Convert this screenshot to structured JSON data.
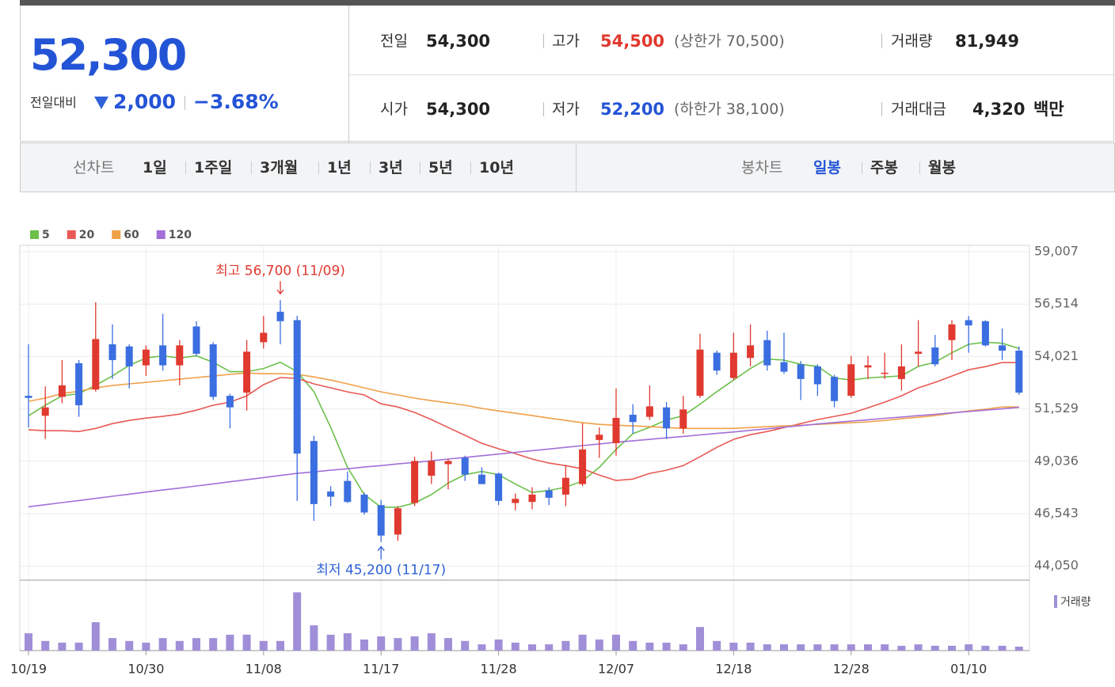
{
  "header": {
    "price": "52,300",
    "change_label": "전일대비",
    "change": "2,000",
    "change_rate": "−3.68%",
    "stats": [
      {
        "label": "전일",
        "value": "54,300"
      },
      {
        "label": "고가",
        "value": "54,500",
        "note": "(상한가 70,500)"
      },
      {
        "label": "거래량",
        "value": "81,949"
      },
      {
        "label": "시가",
        "value": "54,300"
      },
      {
        "label": "저가",
        "value": "52,200",
        "note": "(하한가 38,100)"
      },
      {
        "label": "거래대금",
        "value": "4,320",
        "unit": "백만"
      }
    ]
  },
  "tabs": {
    "line_chart": {
      "label": "선차트",
      "items": [
        "1일",
        "1주일",
        "3개월",
        "1년",
        "3년",
        "5년",
        "10년"
      ]
    },
    "candle_chart": {
      "label": "봉차트",
      "items": [
        "일봉",
        "주봉",
        "월봉"
      ],
      "active": 0
    }
  },
  "chart_data": {
    "type": "candlestick",
    "categories": [
      "10/19",
      null,
      null,
      null,
      null,
      null,
      null,
      "10/30",
      null,
      null,
      null,
      null,
      null,
      null,
      "11/08",
      null,
      null,
      null,
      null,
      null,
      null,
      "11/17",
      null,
      null,
      null,
      null,
      null,
      null,
      "11/28",
      null,
      null,
      null,
      null,
      null,
      null,
      "12/07",
      null,
      null,
      null,
      null,
      null,
      null,
      "12/18",
      null,
      null,
      null,
      null,
      null,
      null,
      "12/28",
      null,
      null,
      null,
      null,
      null,
      null,
      "01/10",
      null,
      null,
      null
    ],
    "open": [
      52150,
      51200,
      52100,
      53700,
      52450,
      54600,
      54500,
      53600,
      54550,
      53600,
      55450,
      54600,
      52150,
      52300,
      54700,
      56150,
      55750,
      50000,
      47600,
      48100,
      47450,
      46950,
      45550,
      47050,
      48350,
      48900,
      49200,
      48400,
      48450,
      47050,
      47100,
      47650,
      47450,
      47950,
      50050,
      49900,
      51250,
      51150,
      51600,
      50600,
      52150,
      54200,
      53000,
      53950,
      54800,
      53750,
      53650,
      53550,
      53050,
      52150,
      53500,
      53200,
      52950,
      54150,
      54450,
      54800,
      55750,
      55700,
      54550,
      54300
    ],
    "high": [
      54600,
      52600,
      53850,
      53850,
      56600,
      55550,
      54600,
      54550,
      56050,
      54800,
      55700,
      54700,
      52250,
      54800,
      55950,
      56700,
      55950,
      50250,
      47850,
      48550,
      47550,
      47200,
      46900,
      49250,
      49500,
      49150,
      49300,
      48750,
      48500,
      47500,
      47800,
      47800,
      48850,
      50850,
      50650,
      52500,
      51750,
      52650,
      51850,
      52150,
      55100,
      54300,
      55150,
      55550,
      55250,
      55150,
      53800,
      53650,
      53150,
      54050,
      54050,
      54200,
      54600,
      55750,
      55050,
      55750,
      55950,
      55750,
      55350,
      54500
    ],
    "low": [
      50650,
      50100,
      51800,
      51150,
      52350,
      52950,
      52500,
      53100,
      53350,
      52650,
      54050,
      51950,
      50600,
      51450,
      54400,
      54600,
      47150,
      46200,
      46900,
      47050,
      46500,
      45200,
      45250,
      46900,
      47950,
      47700,
      48100,
      47950,
      46950,
      46700,
      46750,
      46950,
      46900,
      47850,
      49200,
      49300,
      50350,
      51000,
      50100,
      50350,
      52050,
      53150,
      52900,
      53550,
      53350,
      53200,
      51950,
      52150,
      51600,
      52050,
      52950,
      52950,
      52400,
      53550,
      53550,
      53850,
      54200,
      54500,
      53850,
      52200
    ],
    "close": [
      52050,
      51600,
      52650,
      51700,
      54850,
      53850,
      53550,
      54350,
      53600,
      54550,
      54150,
      52100,
      51600,
      54250,
      55150,
      55700,
      49400,
      47000,
      47350,
      47100,
      46600,
      45500,
      46800,
      49050,
      49050,
      49050,
      48400,
      47950,
      47150,
      47250,
      47450,
      47300,
      48250,
      49600,
      50300,
      51100,
      50900,
      51650,
      50600,
      51500,
      54350,
      53350,
      54200,
      54550,
      53600,
      53300,
      52950,
      52700,
      51900,
      53650,
      53600,
      53250,
      53550,
      54250,
      53650,
      55550,
      55500,
      54550,
      54300,
      52300
    ],
    "up_color": "#e0392f",
    "down_color": "#3b6ee0",
    "series": [
      {
        "name": "5",
        "color": "#6cc04a",
        "values": [
          51200,
          51700,
          52150,
          52250,
          52650,
          53100,
          53600,
          53950,
          54050,
          53950,
          54050,
          53750,
          53300,
          53300,
          53450,
          53750,
          53300,
          52350,
          50650,
          48750,
          47450,
          46850,
          46850,
          47050,
          47450,
          48000,
          48400,
          48550,
          48400,
          47950,
          47550,
          47650,
          47800,
          48100,
          48750,
          49600,
          50350,
          50650,
          51000,
          51200,
          51750,
          52350,
          52900,
          53450,
          53900,
          53850,
          53650,
          53550,
          53000,
          52900,
          53000,
          53050,
          53100,
          53550,
          53750,
          54200,
          54600,
          54700,
          54650,
          54400
        ]
      },
      {
        "name": "20",
        "color": "#e85a55",
        "values": [
          50530,
          50490,
          50490,
          50450,
          50600,
          50830,
          50980,
          51090,
          51170,
          51280,
          51470,
          51700,
          51850,
          52150,
          52680,
          53020,
          52980,
          52720,
          52530,
          52340,
          52190,
          51770,
          51620,
          51360,
          51020,
          50640,
          50270,
          49890,
          49630,
          49400,
          49140,
          48950,
          48830,
          48680,
          48380,
          48120,
          48190,
          48460,
          48610,
          48830,
          49250,
          49700,
          50080,
          50300,
          50450,
          50640,
          50830,
          51020,
          51170,
          51320,
          51580,
          51850,
          52150,
          52530,
          52790,
          53090,
          53390,
          53540,
          53730,
          53730
        ]
      },
      {
        "name": "60",
        "color": "#f0a048",
        "values": [
          51890,
          52040,
          52260,
          52370,
          52530,
          52640,
          52720,
          52790,
          52870,
          52940,
          53020,
          53090,
          53170,
          53240,
          53200,
          53200,
          53170,
          53050,
          52900,
          52720,
          52530,
          52340,
          52190,
          52040,
          51920,
          51810,
          51700,
          51550,
          51430,
          51320,
          51210,
          51090,
          50980,
          50870,
          50790,
          50750,
          50720,
          50680,
          50640,
          50600,
          50600,
          50600,
          50600,
          50640,
          50680,
          50720,
          50750,
          50790,
          50830,
          50870,
          50910,
          50980,
          51060,
          51130,
          51210,
          51320,
          51430,
          51510,
          51620,
          51620
        ]
      },
      {
        "name": "120",
        "color": "#a36fd8",
        "values": [
          46870,
          46970,
          47070,
          47170,
          47270,
          47370,
          47470,
          47570,
          47670,
          47760,
          47860,
          47960,
          48060,
          48160,
          48260,
          48360,
          48460,
          48530,
          48610,
          48680,
          48760,
          48830,
          48910,
          48980,
          49060,
          49140,
          49220,
          49300,
          49380,
          49460,
          49540,
          49620,
          49700,
          49780,
          49860,
          49940,
          50010,
          50080,
          50150,
          50220,
          50290,
          50360,
          50430,
          50510,
          50580,
          50660,
          50730,
          50810,
          50880,
          50950,
          51010,
          51080,
          51140,
          51210,
          51270,
          51340,
          51400,
          51470,
          51530,
          51600
        ]
      }
    ],
    "volume": {
      "name": "거래량",
      "color": "#a08fd8",
      "values": [
        360000,
        200000,
        165000,
        165000,
        590000,
        260000,
        200000,
        165000,
        260000,
        200000,
        260000,
        260000,
        330000,
        330000,
        200000,
        200000,
        1210000,
        525000,
        330000,
        360000,
        230000,
        295000,
        260000,
        295000,
        360000,
        260000,
        200000,
        130000,
        230000,
        165000,
        130000,
        130000,
        200000,
        330000,
        230000,
        330000,
        200000,
        165000,
        165000,
        130000,
        490000,
        200000,
        165000,
        165000,
        130000,
        130000,
        130000,
        130000,
        130000,
        130000,
        130000,
        130000,
        100000,
        130000,
        100000,
        100000,
        130000,
        100000,
        100000,
        81949
      ]
    },
    "volume_ylim": [
      0,
      1430000
    ],
    "ylim": [
      43380,
      59007
    ],
    "yticks": [
      {
        "value": 44050,
        "label": "44,050"
      },
      {
        "value": 46543,
        "label": "46,543"
      },
      {
        "value": 49036,
        "label": "49,036"
      },
      {
        "value": 51529,
        "label": "51,529"
      },
      {
        "value": 54021,
        "label": "54,021"
      },
      {
        "value": 56514,
        "label": "56,514"
      },
      {
        "value": 59007,
        "label": "59,007"
      }
    ],
    "grid": true,
    "annotations": [
      {
        "text": "최고 56,700 (11/09)",
        "value": 56700,
        "color": "#e0392f"
      },
      {
        "text": "최저 45,200 (11/17)",
        "value": 45200,
        "color": "#2f62d8"
      }
    ]
  }
}
